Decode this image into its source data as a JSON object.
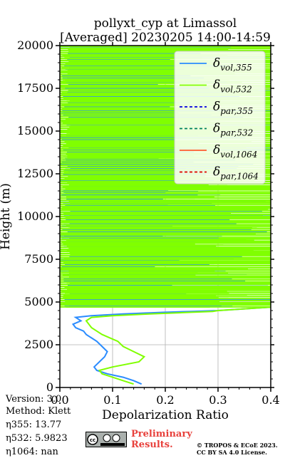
{
  "chart_data": {
    "type": "line",
    "title": "pollyxt_cyp at Limassol",
    "subtitle": "[Averaged] 20230205 14:00-14:59",
    "xlabel": "Depolarization Ratio",
    "ylabel": "Height (m)",
    "xlim": [
      0.0,
      0.4
    ],
    "ylim": [
      0,
      20000
    ],
    "xticks": [
      0.0,
      0.1,
      0.2,
      0.3,
      0.4
    ],
    "xtick_labels": [
      "0.0",
      "0.1",
      "0.2",
      "0.3",
      "0.4"
    ],
    "yticks": [
      0,
      2500,
      5000,
      7500,
      10000,
      12500,
      15000,
      17500,
      20000
    ],
    "ytick_labels": [
      "0",
      "2500",
      "5000",
      "7500",
      "10000",
      "12500",
      "15000",
      "17500",
      "20000"
    ],
    "grid": true,
    "legend_position": "top-right",
    "series": [
      {
        "name": "δvol,355",
        "color": "#2b8cff",
        "style": "solid",
        "note_range": "noisy above ~4700 m, values saturate beyond 0.4",
        "x": [
          0.155,
          0.14,
          0.12,
          0.09,
          0.07,
          0.065,
          0.075,
          0.085,
          0.09,
          0.08,
          0.07,
          0.06,
          0.05,
          0.045,
          0.03,
          0.025,
          0.04,
          0.03,
          0.06,
          0.12,
          0.2,
          0.25,
          0.3,
          0.35,
          0.4
        ],
        "y": [
          200,
          400,
          600,
          800,
          1000,
          1200,
          1500,
          1800,
          2100,
          2400,
          2700,
          2900,
          3100,
          3300,
          3500,
          3700,
          3900,
          4100,
          4200,
          4300,
          4400,
          4450,
          4500,
          4600,
          4700
        ]
      },
      {
        "name": "δvol,532",
        "color": "#80ff00",
        "style": "solid",
        "note_range": "noisy above ~4700 m, values saturate beyond 0.4",
        "x": [
          0.14,
          0.12,
          0.1,
          0.08,
          0.075,
          0.1,
          0.15,
          0.16,
          0.14,
          0.12,
          0.11,
          0.095,
          0.08,
          0.07,
          0.06,
          0.055,
          0.05,
          0.06,
          0.1,
          0.17,
          0.25,
          0.29,
          0.3,
          0.35,
          0.4
        ],
        "y": [
          200,
          400,
          600,
          800,
          1000,
          1200,
          1500,
          1800,
          2100,
          2400,
          2700,
          2900,
          3100,
          3300,
          3500,
          3700,
          3900,
          4100,
          4200,
          4300,
          4400,
          4450,
          4500,
          4600,
          4700
        ]
      },
      {
        "name": "δpar,355",
        "color": "#0000dd",
        "style": "dashed",
        "x": [],
        "y": []
      },
      {
        "name": "δpar,532",
        "color": "#008060",
        "style": "dashed",
        "x": [],
        "y": []
      },
      {
        "name": "δvol,1064",
        "color": "#ff5b2e",
        "style": "solid",
        "x": [],
        "y": []
      },
      {
        "name": "δpar,1064",
        "color": "#dd0000",
        "style": "dashed",
        "x": [],
        "y": []
      }
    ]
  },
  "legend": [
    {
      "base": "δ",
      "sub": "vol,355"
    },
    {
      "base": "δ",
      "sub": "vol,532"
    },
    {
      "base": "δ",
      "sub": "par,355"
    },
    {
      "base": "δ",
      "sub": "par,532"
    },
    {
      "base": "δ",
      "sub": "vol,1064"
    },
    {
      "base": "δ",
      "sub": "par,1064"
    }
  ],
  "info": {
    "version": "Version: 3.0",
    "method": "Method: Klett",
    "eta355": "η355:  13.77",
    "eta532": "η532: 5.9823",
    "eta1064": "η1064:    nan"
  },
  "footer": {
    "preliminary_line1": "Preliminary",
    "preliminary_line2": "Results.",
    "copyright_line1": "© TROPOS & ECoE 2023.",
    "copyright_line2": "CC BY SA 4.0 License."
  },
  "license_badge": {
    "icon": "cc-by-sa-icon"
  }
}
